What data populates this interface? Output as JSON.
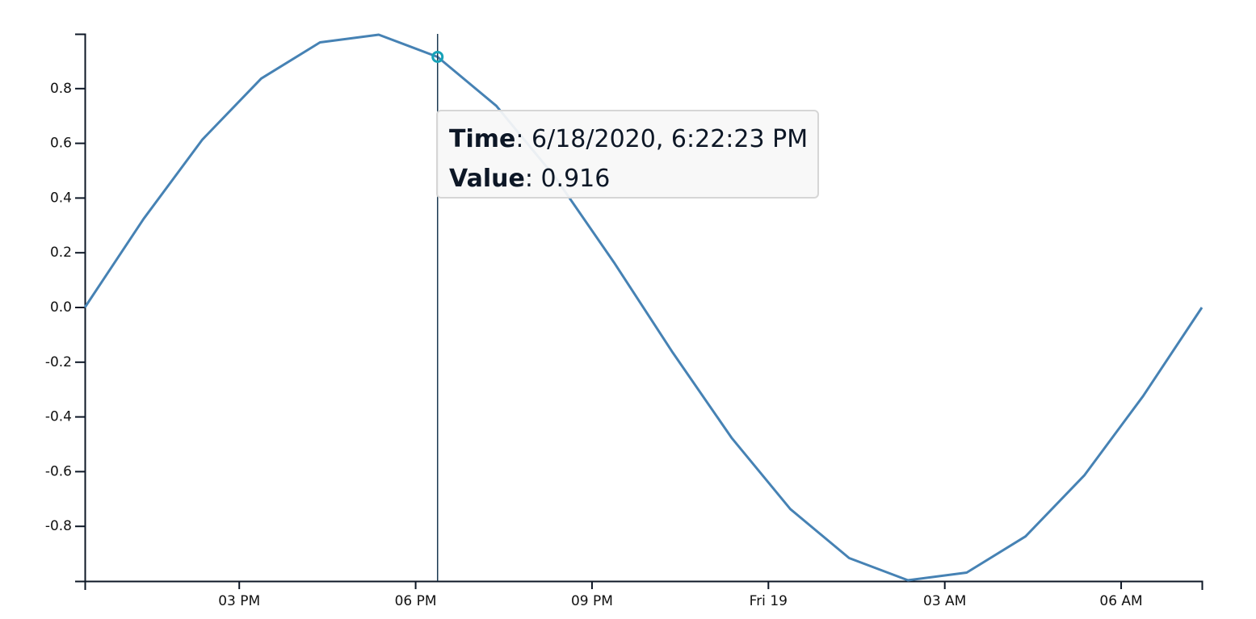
{
  "chart_data": {
    "type": "line",
    "title": "",
    "xlabel": "",
    "ylabel": "",
    "x_domain": [
      "2020-06-18T12:22:23",
      "2020-06-19T07:22:23"
    ],
    "ylim": [
      -1.0,
      1.0
    ],
    "x_ticks": [
      {
        "time": "2020-06-18T15:00:00",
        "label": "03 PM"
      },
      {
        "time": "2020-06-18T18:00:00",
        "label": "06 PM"
      },
      {
        "time": "2020-06-18T21:00:00",
        "label": "09 PM"
      },
      {
        "time": "2020-06-19T00:00:00",
        "label": "Fri 19"
      },
      {
        "time": "2020-06-19T03:00:00",
        "label": "03 AM"
      },
      {
        "time": "2020-06-19T06:00:00",
        "label": "06 AM"
      }
    ],
    "y_ticks": [
      {
        "value": 0.8,
        "label": "0.8"
      },
      {
        "value": 0.6,
        "label": "0.6"
      },
      {
        "value": 0.4,
        "label": "0.4"
      },
      {
        "value": 0.2,
        "label": "0.2"
      },
      {
        "value": 0.0,
        "label": "0.0"
      },
      {
        "value": -0.2,
        "label": "-0.2"
      },
      {
        "value": -0.4,
        "label": "-0.4"
      },
      {
        "value": -0.6,
        "label": "-0.6"
      },
      {
        "value": -0.8,
        "label": "-0.8"
      }
    ],
    "series": [
      {
        "name": "value",
        "color": "#4682b4",
        "points": [
          {
            "t": "2020-06-18T12:22:23",
            "v": 0.0
          },
          {
            "t": "2020-06-18T13:22:23",
            "v": 0.324
          },
          {
            "t": "2020-06-18T14:22:23",
            "v": 0.614
          },
          {
            "t": "2020-06-18T15:22:23",
            "v": 0.837
          },
          {
            "t": "2020-06-18T16:22:23",
            "v": 0.969
          },
          {
            "t": "2020-06-18T17:22:23",
            "v": 0.997
          },
          {
            "t": "2020-06-18T18:22:23",
            "v": 0.916
          },
          {
            "t": "2020-06-18T19:22:23",
            "v": 0.737
          },
          {
            "t": "2020-06-18T20:22:23",
            "v": 0.476
          },
          {
            "t": "2020-06-18T21:22:23",
            "v": 0.165
          },
          {
            "t": "2020-06-18T22:22:23",
            "v": -0.165
          },
          {
            "t": "2020-06-18T23:22:23",
            "v": -0.476
          },
          {
            "t": "2020-06-19T00:22:23",
            "v": -0.737
          },
          {
            "t": "2020-06-19T01:22:23",
            "v": -0.916
          },
          {
            "t": "2020-06-19T02:22:23",
            "v": -0.997
          },
          {
            "t": "2020-06-19T03:22:23",
            "v": -0.969
          },
          {
            "t": "2020-06-19T04:22:23",
            "v": -0.837
          },
          {
            "t": "2020-06-19T05:22:23",
            "v": -0.614
          },
          {
            "t": "2020-06-19T06:22:23",
            "v": -0.324
          },
          {
            "t": "2020-06-19T07:22:23",
            "v": 0.0
          }
        ]
      }
    ],
    "hover": {
      "time": "2020-06-18T18:22:23",
      "value": 0.916,
      "marker_color": "#17a2b8",
      "rule_color": "#1b3a52"
    }
  },
  "tooltip": {
    "time_key": "Time",
    "time_value": "6/18/2020, 6:22:23 PM",
    "value_key": "Value",
    "value_value": "0.916"
  },
  "colors": {
    "axis": "#0d1726",
    "line": "#4682b4"
  }
}
